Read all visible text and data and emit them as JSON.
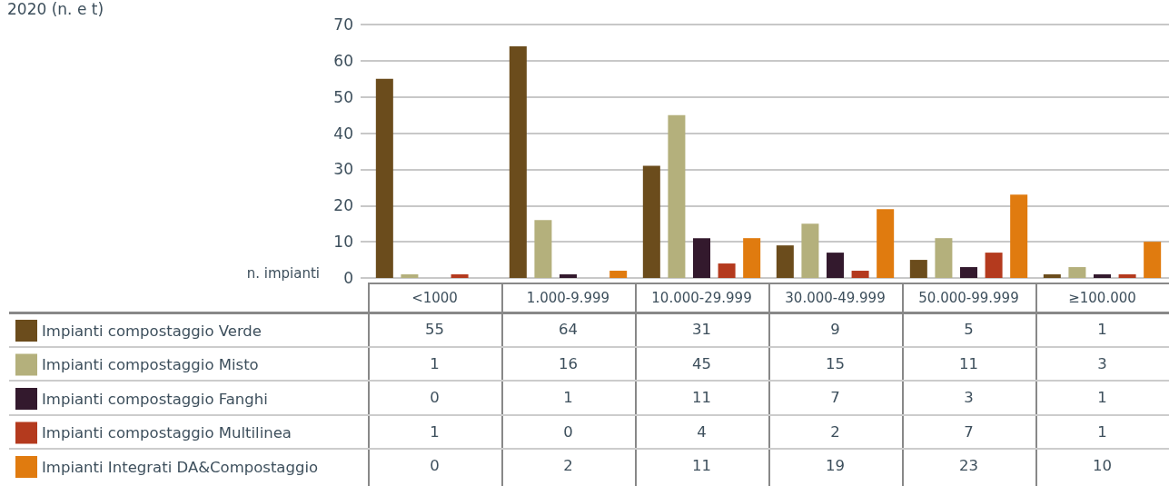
{
  "chart_data": {
    "type": "bar",
    "title": "2020 (n. e t)",
    "ylabel": "n. impianti",
    "categories": [
      "<1000",
      "1.000-9.999",
      "10.000-29.999",
      "30.000-49.999",
      "50.000-99.999",
      "≥100.000"
    ],
    "series": [
      {
        "name": "Impianti compostaggio Verde",
        "color": "#6b4c1c",
        "values": [
          55,
          64,
          31,
          9,
          5,
          1
        ]
      },
      {
        "name": "Impianti compostaggio Misto",
        "color": "#b4b07c",
        "values": [
          1,
          16,
          45,
          15,
          11,
          3
        ]
      },
      {
        "name": "Impianti compostaggio Fanghi",
        "color": "#33192d",
        "values": [
          0,
          1,
          11,
          7,
          3,
          1
        ]
      },
      {
        "name": "Impianti compostaggio Multilinea",
        "color": "#b43a1e",
        "values": [
          1,
          0,
          4,
          2,
          7,
          1
        ]
      },
      {
        "name": "Impianti Integrati DA&Compostaggio",
        "color": "#e07b0f",
        "values": [
          0,
          2,
          11,
          19,
          23,
          10
        ]
      }
    ],
    "ylim": [
      0,
      70
    ],
    "yticks": [
      0,
      10,
      20,
      30,
      40,
      50,
      60,
      70
    ],
    "grid": "y",
    "legend": "bottom",
    "data_labels": true
  }
}
